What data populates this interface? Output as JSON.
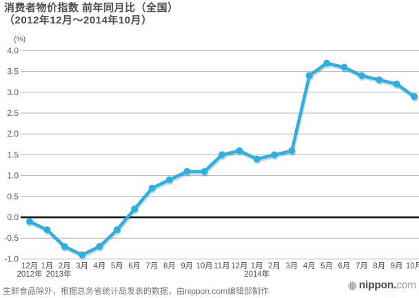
{
  "header": {
    "title_line1": "消费者物价指数 前年同月比（全国）",
    "title_line2": "（2012年12月～2014年10月）"
  },
  "chart_data": {
    "type": "line",
    "title": "消费者物价指数 前年同月比（全国）（2012年12月～2014年10月）",
    "ylabel": "(%)",
    "ylim": [
      -1.0,
      4.0
    ],
    "yticks": [
      4.0,
      3.5,
      3.0,
      2.5,
      2.0,
      1.5,
      1.0,
      0.5,
      0.0,
      -0.5,
      -1.0
    ],
    "grid": true,
    "legend": false,
    "line_color": "#29b1e4",
    "grid_color": "#b3b3b3",
    "zero_line_color": "#1a1a1a",
    "categories": [
      "12月",
      "1月",
      "2月",
      "3月",
      "4月",
      "5月",
      "6月",
      "7月",
      "8月",
      "9月",
      "10月",
      "11月",
      "12月",
      "1月",
      "2月",
      "3月",
      "4月",
      "5月",
      "6月",
      "7月",
      "8月",
      "9月",
      "10月"
    ],
    "year_labels": [
      {
        "text": "2012年",
        "month_index": 0
      },
      {
        "text": "2013年",
        "month_index": 1
      },
      {
        "text": "2014年",
        "month_index": 13
      }
    ],
    "values": [
      -0.1,
      -0.3,
      -0.7,
      -0.9,
      -0.7,
      -0.3,
      0.2,
      0.7,
      0.9,
      1.1,
      1.1,
      1.5,
      1.6,
      1.4,
      1.5,
      1.6,
      3.4,
      3.7,
      3.6,
      3.4,
      3.3,
      3.2,
      2.9
    ]
  },
  "footer": {
    "source_note": "生鲜食品除外，根据总务省统计局发表的数据，由nippon.com编辑部制作",
    "logo": {
      "text_nippon": "nippon",
      "text_dot": ".",
      "text_com": "com",
      "dot_color": "#e60012"
    }
  }
}
